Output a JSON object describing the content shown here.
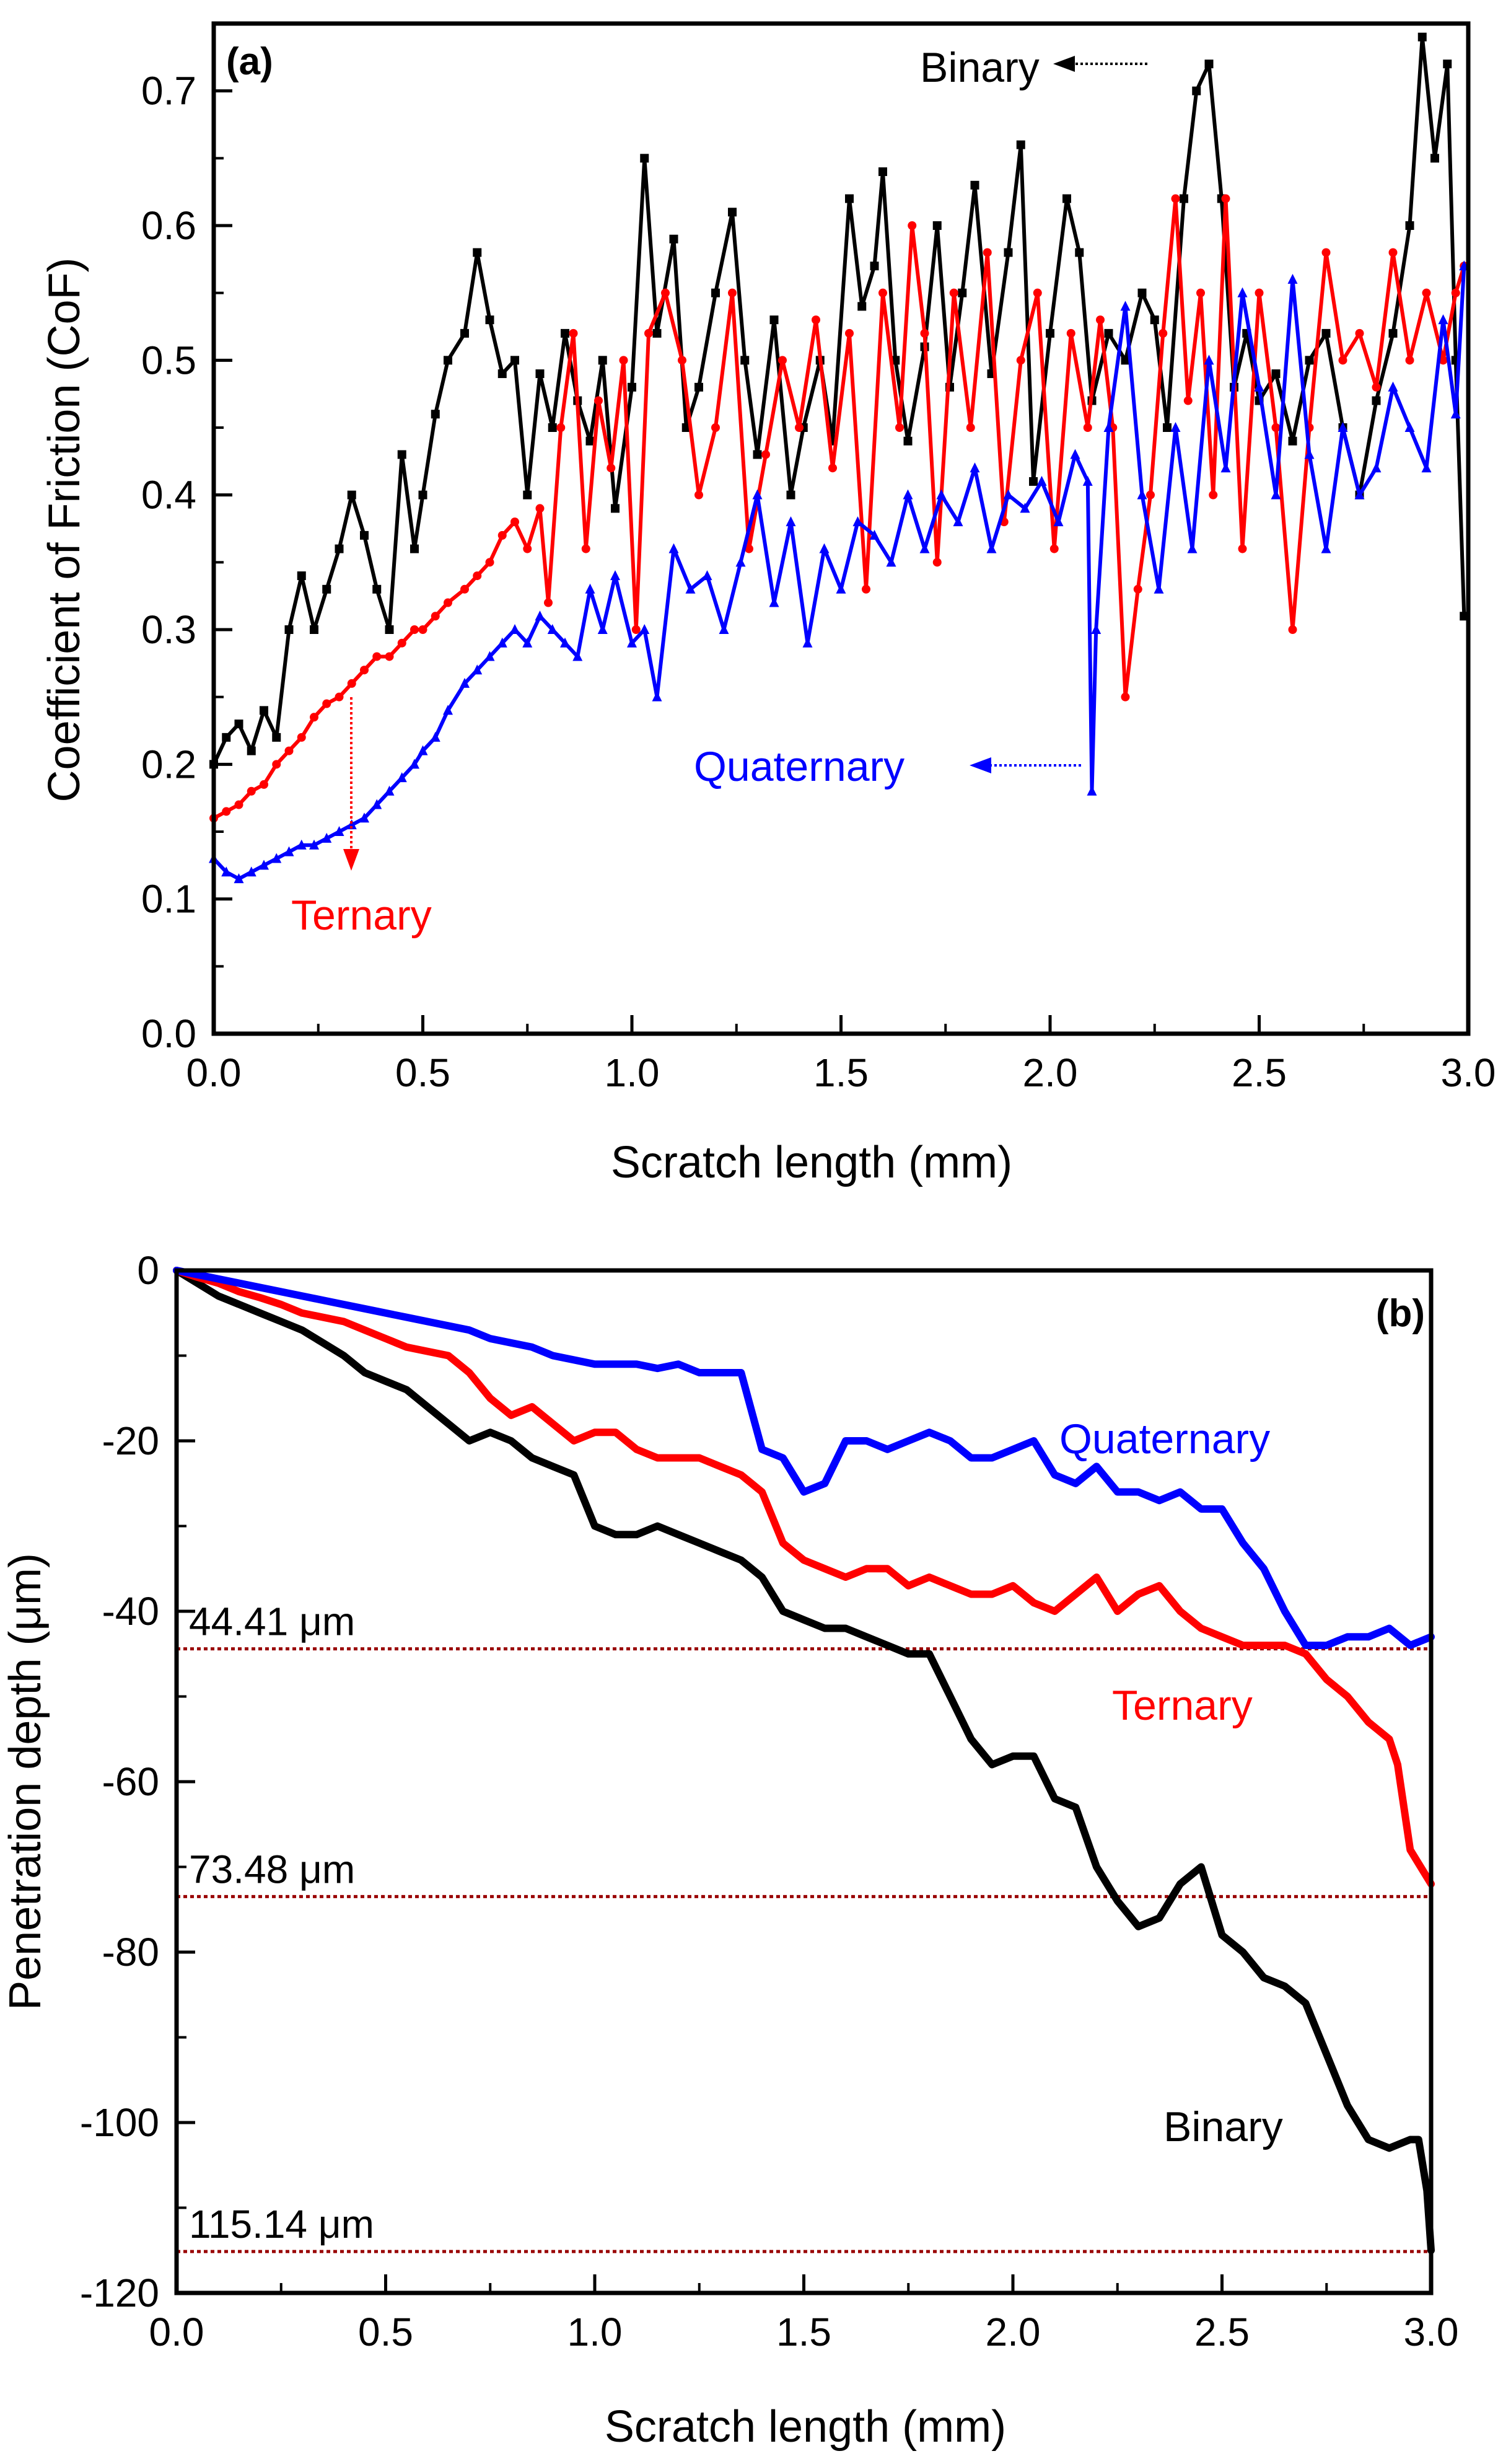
{
  "figure": {
    "panels_description": "two vertically stacked line charts"
  },
  "chart_data": [
    {
      "type": "line",
      "panel_label": "(a)",
      "title": "",
      "xlabel": "Scratch length (mm)",
      "ylabel": "Coefficient of Friction (CoF)",
      "xlim": [
        0.0,
        3.0
      ],
      "ylim": [
        0.0,
        0.75
      ],
      "xticks": [
        "0.0",
        "0.5",
        "1.0",
        "1.5",
        "2.0",
        "2.5",
        "3.0"
      ],
      "yticks": [
        "0.0",
        "0.1",
        "0.2",
        "0.3",
        "0.4",
        "0.5",
        "0.6",
        "0.7"
      ],
      "grid": false,
      "series": [
        {
          "name": "Binary",
          "color": "#000000",
          "marker": "square",
          "x": [
            0.0,
            0.03,
            0.06,
            0.09,
            0.12,
            0.15,
            0.18,
            0.21,
            0.24,
            0.27,
            0.3,
            0.33,
            0.36,
            0.39,
            0.42,
            0.45,
            0.48,
            0.5,
            0.53,
            0.56,
            0.6,
            0.63,
            0.66,
            0.69,
            0.72,
            0.75,
            0.78,
            0.81,
            0.84,
            0.87,
            0.9,
            0.93,
            0.96,
            1.0,
            1.03,
            1.06,
            1.1,
            1.13,
            1.16,
            1.2,
            1.24,
            1.27,
            1.3,
            1.34,
            1.38,
            1.41,
            1.45,
            1.48,
            1.52,
            1.55,
            1.58,
            1.6,
            1.63,
            1.66,
            1.7,
            1.73,
            1.76,
            1.79,
            1.82,
            1.86,
            1.9,
            1.93,
            1.96,
            2.0,
            2.04,
            2.07,
            2.1,
            2.14,
            2.18,
            2.22,
            2.25,
            2.28,
            2.32,
            2.35,
            2.38,
            2.41,
            2.44,
            2.47,
            2.5,
            2.54,
            2.58,
            2.62,
            2.66,
            2.7,
            2.74,
            2.78,
            2.82,
            2.86,
            2.89,
            2.92,
            2.95,
            2.97,
            2.99
          ],
          "y": [
            0.2,
            0.22,
            0.23,
            0.21,
            0.24,
            0.22,
            0.3,
            0.34,
            0.3,
            0.33,
            0.36,
            0.4,
            0.37,
            0.33,
            0.3,
            0.43,
            0.36,
            0.4,
            0.46,
            0.5,
            0.52,
            0.58,
            0.53,
            0.49,
            0.5,
            0.4,
            0.49,
            0.45,
            0.52,
            0.47,
            0.44,
            0.5,
            0.39,
            0.48,
            0.65,
            0.52,
            0.59,
            0.45,
            0.48,
            0.55,
            0.61,
            0.5,
            0.43,
            0.53,
            0.4,
            0.45,
            0.5,
            0.44,
            0.62,
            0.54,
            0.57,
            0.64,
            0.5,
            0.44,
            0.51,
            0.6,
            0.48,
            0.55,
            0.63,
            0.49,
            0.58,
            0.66,
            0.41,
            0.52,
            0.62,
            0.58,
            0.47,
            0.52,
            0.5,
            0.55,
            0.53,
            0.45,
            0.62,
            0.7,
            0.72,
            0.62,
            0.48,
            0.52,
            0.47,
            0.49,
            0.44,
            0.5,
            0.52,
            0.45,
            0.4,
            0.47,
            0.52,
            0.6,
            0.74,
            0.65,
            0.72,
            0.5,
            0.31
          ]
        },
        {
          "name": "Ternary",
          "color": "#ff0000",
          "marker": "circle",
          "x": [
            0.0,
            0.03,
            0.06,
            0.09,
            0.12,
            0.15,
            0.18,
            0.21,
            0.24,
            0.27,
            0.3,
            0.33,
            0.36,
            0.39,
            0.42,
            0.45,
            0.48,
            0.5,
            0.53,
            0.56,
            0.6,
            0.63,
            0.66,
            0.69,
            0.72,
            0.75,
            0.78,
            0.8,
            0.83,
            0.86,
            0.89,
            0.92,
            0.95,
            0.98,
            1.01,
            1.04,
            1.08,
            1.12,
            1.16,
            1.2,
            1.24,
            1.28,
            1.32,
            1.36,
            1.4,
            1.44,
            1.48,
            1.52,
            1.56,
            1.6,
            1.64,
            1.67,
            1.7,
            1.73,
            1.77,
            1.81,
            1.85,
            1.89,
            1.93,
            1.97,
            2.01,
            2.05,
            2.09,
            2.12,
            2.15,
            2.18,
            2.21,
            2.24,
            2.27,
            2.3,
            2.33,
            2.36,
            2.39,
            2.42,
            2.46,
            2.5,
            2.54,
            2.58,
            2.62,
            2.66,
            2.7,
            2.74,
            2.78,
            2.82,
            2.86,
            2.9,
            2.94,
            2.97,
            2.99
          ],
          "y": [
            0.16,
            0.165,
            0.17,
            0.18,
            0.185,
            0.2,
            0.21,
            0.22,
            0.235,
            0.245,
            0.25,
            0.26,
            0.27,
            0.28,
            0.28,
            0.29,
            0.3,
            0.3,
            0.31,
            0.32,
            0.33,
            0.34,
            0.35,
            0.37,
            0.38,
            0.36,
            0.39,
            0.32,
            0.45,
            0.52,
            0.36,
            0.47,
            0.42,
            0.5,
            0.3,
            0.52,
            0.55,
            0.5,
            0.4,
            0.45,
            0.55,
            0.36,
            0.43,
            0.5,
            0.45,
            0.53,
            0.42,
            0.52,
            0.33,
            0.55,
            0.45,
            0.6,
            0.52,
            0.35,
            0.55,
            0.45,
            0.58,
            0.38,
            0.5,
            0.55,
            0.36,
            0.52,
            0.45,
            0.53,
            0.45,
            0.25,
            0.33,
            0.4,
            0.52,
            0.62,
            0.47,
            0.55,
            0.4,
            0.62,
            0.36,
            0.55,
            0.45,
            0.3,
            0.45,
            0.58,
            0.5,
            0.52,
            0.48,
            0.58,
            0.5,
            0.55,
            0.5,
            0.55,
            0.57
          ]
        },
        {
          "name": "Quaternary",
          "color": "#0000ff",
          "marker": "triangle",
          "x": [
            0.0,
            0.03,
            0.06,
            0.09,
            0.12,
            0.15,
            0.18,
            0.21,
            0.24,
            0.27,
            0.3,
            0.33,
            0.36,
            0.39,
            0.42,
            0.45,
            0.48,
            0.5,
            0.53,
            0.56,
            0.6,
            0.63,
            0.66,
            0.69,
            0.72,
            0.75,
            0.78,
            0.81,
            0.84,
            0.87,
            0.9,
            0.93,
            0.96,
            1.0,
            1.03,
            1.06,
            1.1,
            1.14,
            1.18,
            1.22,
            1.26,
            1.3,
            1.34,
            1.38,
            1.42,
            1.46,
            1.5,
            1.54,
            1.58,
            1.62,
            1.66,
            1.7,
            1.74,
            1.78,
            1.82,
            1.86,
            1.9,
            1.94,
            1.98,
            2.02,
            2.06,
            2.09,
            2.1,
            2.11,
            2.14,
            2.18,
            2.22,
            2.26,
            2.3,
            2.34,
            2.38,
            2.42,
            2.46,
            2.5,
            2.54,
            2.58,
            2.62,
            2.66,
            2.7,
            2.74,
            2.78,
            2.82,
            2.86,
            2.9,
            2.94,
            2.97,
            2.99
          ],
          "y": [
            0.13,
            0.12,
            0.115,
            0.12,
            0.125,
            0.13,
            0.135,
            0.14,
            0.14,
            0.145,
            0.15,
            0.155,
            0.16,
            0.17,
            0.18,
            0.19,
            0.2,
            0.21,
            0.22,
            0.24,
            0.26,
            0.27,
            0.28,
            0.29,
            0.3,
            0.29,
            0.31,
            0.3,
            0.29,
            0.28,
            0.33,
            0.3,
            0.34,
            0.29,
            0.3,
            0.25,
            0.36,
            0.33,
            0.34,
            0.3,
            0.35,
            0.4,
            0.32,
            0.38,
            0.29,
            0.36,
            0.33,
            0.38,
            0.37,
            0.35,
            0.4,
            0.36,
            0.4,
            0.38,
            0.42,
            0.36,
            0.4,
            0.39,
            0.41,
            0.38,
            0.43,
            0.41,
            0.18,
            0.3,
            0.45,
            0.54,
            0.4,
            0.33,
            0.45,
            0.36,
            0.5,
            0.42,
            0.55,
            0.48,
            0.4,
            0.56,
            0.43,
            0.36,
            0.45,
            0.4,
            0.42,
            0.48,
            0.45,
            0.42,
            0.53,
            0.46,
            0.57
          ]
        }
      ],
      "annotations": [
        {
          "text": "Binary",
          "color": "#000000",
          "arrow_to": [
            2.1,
            0.72
          ]
        },
        {
          "text": "Ternary",
          "color": "#ff0000",
          "arrow_from": [
            0.34,
            0.25
          ]
        },
        {
          "text": "Quaternary",
          "color": "#0000ff",
          "arrow_to": [
            2.08,
            0.19
          ]
        }
      ]
    },
    {
      "type": "line",
      "panel_label": "(b)",
      "title": "",
      "xlabel": "Scratch length (mm)",
      "ylabel": "Penetration depth (μm)",
      "xlim": [
        0.0,
        3.0
      ],
      "ylim": [
        -120,
        0
      ],
      "xticks": [
        "0.0",
        "0.5",
        "1.0",
        "1.5",
        "2.0",
        "2.5",
        "3.0"
      ],
      "yticks": [
        "0",
        "-20",
        "-40",
        "-60",
        "-80",
        "-100",
        "-120"
      ],
      "grid": false,
      "series": [
        {
          "name": "Binary",
          "color": "#000000",
          "x": [
            0.0,
            0.05,
            0.1,
            0.15,
            0.2,
            0.25,
            0.3,
            0.35,
            0.4,
            0.45,
            0.5,
            0.55,
            0.6,
            0.65,
            0.7,
            0.75,
            0.8,
            0.85,
            0.9,
            0.95,
            1.0,
            1.05,
            1.1,
            1.15,
            1.2,
            1.25,
            1.3,
            1.35,
            1.4,
            1.45,
            1.5,
            1.55,
            1.6,
            1.65,
            1.7,
            1.75,
            1.8,
            1.85,
            1.9,
            1.95,
            2.0,
            2.05,
            2.1,
            2.15,
            2.2,
            2.25,
            2.3,
            2.35,
            2.4,
            2.45,
            2.5,
            2.55,
            2.6,
            2.65,
            2.7,
            2.75,
            2.8,
            2.85,
            2.9,
            2.95,
            2.97,
            2.99,
            3.0
          ],
          "y": [
            0,
            -1.5,
            -3,
            -4,
            -5,
            -6,
            -7,
            -8.5,
            -10,
            -12,
            -13,
            -14,
            -16,
            -18,
            -20,
            -19,
            -20,
            -22,
            -23,
            -24,
            -30,
            -31,
            -31,
            -30,
            -31,
            -32,
            -33,
            -34,
            -36,
            -40,
            -41,
            -42,
            -42,
            -43,
            -44,
            -45,
            -45,
            -50,
            -55,
            -58,
            -57,
            -57,
            -62,
            -63,
            -70,
            -74,
            -77,
            -76,
            -72,
            -70,
            -78,
            -80,
            -83,
            -84,
            -86,
            -92,
            -98,
            -102,
            -103,
            -102,
            -102,
            -108,
            -115
          ]
        },
        {
          "name": "Ternary",
          "color": "#ff0000",
          "x": [
            0.0,
            0.05,
            0.1,
            0.15,
            0.2,
            0.25,
            0.3,
            0.35,
            0.4,
            0.45,
            0.5,
            0.55,
            0.6,
            0.65,
            0.7,
            0.75,
            0.8,
            0.85,
            0.9,
            0.95,
            1.0,
            1.05,
            1.1,
            1.15,
            1.2,
            1.25,
            1.3,
            1.35,
            1.4,
            1.45,
            1.5,
            1.55,
            1.6,
            1.65,
            1.7,
            1.75,
            1.8,
            1.85,
            1.9,
            1.95,
            2.0,
            2.05,
            2.1,
            2.15,
            2.2,
            2.25,
            2.3,
            2.35,
            2.4,
            2.45,
            2.5,
            2.55,
            2.6,
            2.65,
            2.7,
            2.75,
            2.8,
            2.85,
            2.9,
            2.92,
            2.95,
            3.0
          ],
          "y": [
            0,
            -0.8,
            -1.5,
            -2.5,
            -3.2,
            -4,
            -5,
            -5.5,
            -6,
            -7,
            -8,
            -9,
            -9.5,
            -10,
            -12,
            -15,
            -17,
            -16,
            -18,
            -20,
            -19,
            -19,
            -21,
            -22,
            -22,
            -22,
            -23,
            -24,
            -26,
            -32,
            -34,
            -35,
            -36,
            -35,
            -35,
            -37,
            -36,
            -37,
            -38,
            -38,
            -37,
            -39,
            -40,
            -38,
            -36,
            -40,
            -38,
            -37,
            -40,
            -42,
            -43,
            -44,
            -44,
            -44,
            -45,
            -48,
            -50,
            -53,
            -55,
            -58,
            -68,
            -72
          ]
        },
        {
          "name": "Quaternary",
          "color": "#0000ff",
          "x": [
            0.0,
            0.05,
            0.1,
            0.15,
            0.2,
            0.25,
            0.3,
            0.35,
            0.4,
            0.45,
            0.5,
            0.55,
            0.6,
            0.65,
            0.7,
            0.75,
            0.8,
            0.85,
            0.9,
            0.95,
            1.0,
            1.05,
            1.1,
            1.15,
            1.2,
            1.25,
            1.3,
            1.35,
            1.4,
            1.45,
            1.5,
            1.55,
            1.6,
            1.65,
            1.7,
            1.75,
            1.8,
            1.85,
            1.9,
            1.95,
            2.0,
            2.05,
            2.1,
            2.15,
            2.2,
            2.25,
            2.3,
            2.35,
            2.4,
            2.45,
            2.5,
            2.55,
            2.6,
            2.65,
            2.7,
            2.75,
            2.8,
            2.85,
            2.9,
            2.95,
            3.0
          ],
          "y": [
            0,
            -0.5,
            -1,
            -1.5,
            -2,
            -2.5,
            -3,
            -3.5,
            -4,
            -4.5,
            -5,
            -5.5,
            -6,
            -6.5,
            -7,
            -8,
            -8.5,
            -9,
            -10,
            -10.5,
            -11,
            -11,
            -11,
            -11.5,
            -11,
            -12,
            -12,
            -12,
            -21,
            -22,
            -26,
            -25,
            -20,
            -20,
            -21,
            -20,
            -19,
            -20,
            -22,
            -22,
            -21,
            -20,
            -24,
            -25,
            -23,
            -26,
            -26,
            -27,
            -26,
            -28,
            -28,
            -32,
            -35,
            -40,
            -44,
            -44,
            -43,
            -43,
            -42,
            -44,
            -43
          ]
        }
      ],
      "reference_lines": [
        {
          "value": -44.41,
          "label": "44.41 μm",
          "color": "#990000"
        },
        {
          "value": -73.48,
          "label": "73.48 μm",
          "color": "#990000"
        },
        {
          "value": -115.14,
          "label": "115.14 μm",
          "color": "#990000"
        }
      ],
      "annotations": [
        {
          "text": "Quaternary",
          "color": "#0000ff"
        },
        {
          "text": "Ternary",
          "color": "#ff0000"
        },
        {
          "text": "Binary",
          "color": "#000000"
        }
      ]
    }
  ]
}
